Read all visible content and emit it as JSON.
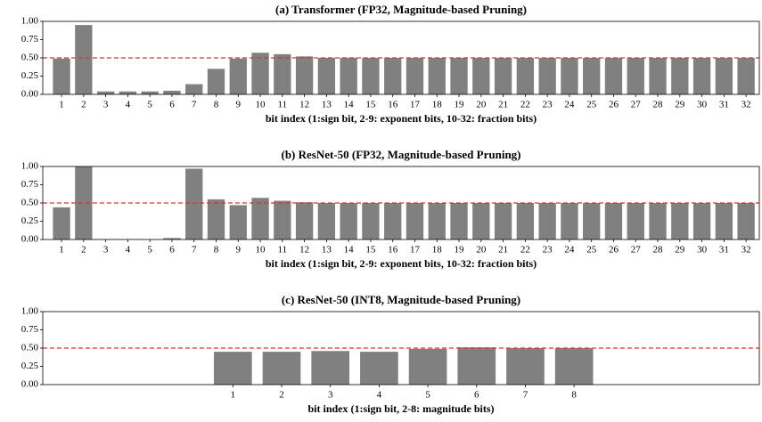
{
  "chart_data": [
    {
      "type": "bar",
      "title": "(a) Transformer (FP32, Magnitude-based Pruning)",
      "xlabel": "bit index (1:sign bit, 2-9: exponent bits, 10-32: fraction bits)",
      "x": [
        1,
        2,
        3,
        4,
        5,
        6,
        7,
        8,
        9,
        10,
        11,
        12,
        13,
        14,
        15,
        16,
        17,
        18,
        19,
        20,
        21,
        22,
        23,
        24,
        25,
        26,
        27,
        28,
        29,
        30,
        31,
        32
      ],
      "values": [
        0.49,
        0.95,
        0.04,
        0.04,
        0.04,
        0.05,
        0.14,
        0.35,
        0.49,
        0.57,
        0.55,
        0.52,
        0.5,
        0.5,
        0.5,
        0.5,
        0.5,
        0.5,
        0.5,
        0.5,
        0.5,
        0.5,
        0.5,
        0.5,
        0.5,
        0.5,
        0.5,
        0.5,
        0.5,
        0.5,
        0.5,
        0.5
      ],
      "color": "#808080",
      "xlim": [
        0.15,
        32.6
      ],
      "xticks": [
        1,
        2,
        3,
        4,
        5,
        6,
        7,
        8,
        9,
        10,
        11,
        12,
        13,
        14,
        15,
        16,
        17,
        18,
        19,
        20,
        21,
        22,
        23,
        24,
        25,
        26,
        27,
        28,
        29,
        30,
        31,
        32
      ],
      "ylim": [
        0,
        1
      ],
      "yticks": [
        {
          "value": 0,
          "label": "0.00"
        },
        {
          "value": 0.25,
          "label": "0.25"
        },
        {
          "value": 0.5,
          "label": "0.50"
        },
        {
          "value": 0.75,
          "label": "0.75"
        },
        {
          "value": 1,
          "label": "1.00"
        }
      ],
      "hline": 0.5,
      "hline_color": "#e0302a",
      "grid": false
    },
    {
      "type": "bar",
      "title": "(b) ResNet-50 (FP32, Magnitude-based Pruning)",
      "xlabel": "bit index (1:sign bit, 2-9: exponent bits, 10-32: fraction bits)",
      "x": [
        1,
        2,
        3,
        4,
        5,
        6,
        7,
        8,
        9,
        10,
        11,
        12,
        13,
        14,
        15,
        16,
        17,
        18,
        19,
        20,
        21,
        22,
        23,
        24,
        25,
        26,
        27,
        28,
        29,
        30,
        31,
        32
      ],
      "values": [
        0.44,
        1.0,
        0,
        0,
        0,
        0.02,
        0.97,
        0.55,
        0.47,
        0.57,
        0.53,
        0.51,
        0.5,
        0.5,
        0.5,
        0.5,
        0.5,
        0.5,
        0.5,
        0.5,
        0.5,
        0.5,
        0.5,
        0.5,
        0.5,
        0.5,
        0.5,
        0.5,
        0.5,
        0.5,
        0.5,
        0.5
      ],
      "color": "#808080",
      "xlim": [
        0.15,
        32.6
      ],
      "xticks": [
        1,
        2,
        3,
        4,
        5,
        6,
        7,
        8,
        9,
        10,
        11,
        12,
        13,
        14,
        15,
        16,
        17,
        18,
        19,
        20,
        21,
        22,
        23,
        24,
        25,
        26,
        27,
        28,
        29,
        30,
        31,
        32
      ],
      "ylim": [
        0,
        1
      ],
      "yticks": [
        {
          "value": 0,
          "label": "0.00"
        },
        {
          "value": 0.25,
          "label": "0.25"
        },
        {
          "value": 0.5,
          "label": "0.50"
        },
        {
          "value": 0.75,
          "label": "0.75"
        },
        {
          "value": 1,
          "label": "1.00"
        }
      ],
      "hline": 0.5,
      "hline_color": "#e0302a",
      "grid": false
    },
    {
      "type": "bar",
      "title": "(c) ResNet-50 (INT8, Magnitude-based Pruning)",
      "xlabel": "bit index (1:sign bit, 2-8: magnitude bits)",
      "x": [
        1,
        2,
        3,
        4,
        5,
        6,
        7,
        8
      ],
      "values": [
        0.45,
        0.45,
        0.46,
        0.45,
        0.49,
        0.51,
        0.5,
        0.5
      ],
      "color": "#808080",
      "xlim": [
        -2.9,
        11.8
      ],
      "xticks": [
        1,
        2,
        3,
        4,
        5,
        6,
        7,
        8
      ],
      "ylim": [
        0,
        1
      ],
      "yticks": [
        {
          "value": 0,
          "label": "0.00"
        },
        {
          "value": 0.25,
          "label": "0.25"
        },
        {
          "value": 0.5,
          "label": "0.50"
        },
        {
          "value": 0.75,
          "label": "0.75"
        },
        {
          "value": 1,
          "label": "1.00"
        }
      ],
      "hline": 0.5,
      "hline_color": "#e0302a",
      "grid": false
    }
  ]
}
